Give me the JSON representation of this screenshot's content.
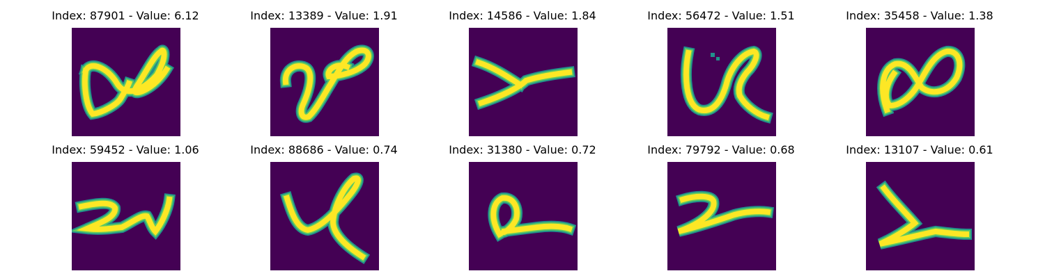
{
  "colors": {
    "background": "#440154",
    "edge": "#21918c",
    "mid": "#5ec962",
    "stroke": "#fde725"
  },
  "panels": [
    {
      "title": "Index: 87901 - Value: 6.12"
    },
    {
      "title": "Index: 13389 - Value: 1.91"
    },
    {
      "title": "Index: 14586 - Value: 1.84"
    },
    {
      "title": "Index: 56472 - Value: 1.51"
    },
    {
      "title": "Index: 35458 - Value: 1.38"
    },
    {
      "title": "Index: 59452 - Value: 1.06"
    },
    {
      "title": "Index: 88686 - Value: 0.74"
    },
    {
      "title": "Index: 31380 - Value: 0.72"
    },
    {
      "title": "Index: 79792 - Value: 0.68"
    },
    {
      "title": "Index: 13107 - Value: 0.61"
    }
  ]
}
